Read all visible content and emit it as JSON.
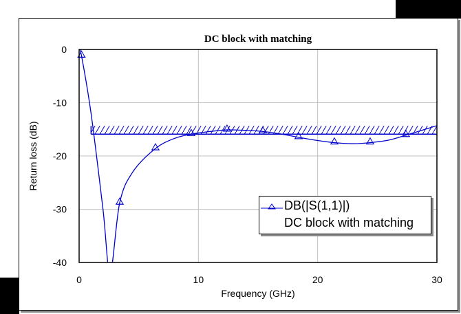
{
  "chart_data": {
    "type": "line",
    "title": "DC block with matching",
    "xlabel": "Frequency (GHz)",
    "ylabel": "Return loss (dB)",
    "xlim": [
      0,
      30
    ],
    "ylim": [
      -40,
      0
    ],
    "xticks": [
      "0",
      "10",
      "20",
      "30"
    ],
    "yticks": [
      "0",
      "-10",
      "-20",
      "-30",
      "-40"
    ],
    "grid": true,
    "legend_position": "lower right",
    "series": [
      {
        "name": "DB(|S(1,1)|)",
        "subtitle": "DC block with matching",
        "color": "#0000cc",
        "marker": "triangle",
        "x": [
          0,
          0.2,
          1.0,
          2.0,
          2.6,
          3.4,
          4.5,
          6.4,
          8.0,
          9.4,
          11.0,
          12.4,
          14.0,
          15.4,
          17.0,
          18.4,
          20.0,
          21.4,
          23.0,
          24.4,
          26.0,
          27.4,
          29.0,
          30.0
        ],
        "y": [
          0,
          -1.2,
          -12,
          -30,
          -42,
          -28.8,
          -23,
          -18.6,
          -16.7,
          -15.9,
          -15.4,
          -15.1,
          -15.2,
          -15.4,
          -15.9,
          -16.5,
          -17.1,
          -17.5,
          -17.7,
          -17.5,
          -17.0,
          -16.1,
          -15.0,
          -14.3
        ]
      }
    ],
    "annotations": [
      {
        "type": "goal-line",
        "label": "hatched specification",
        "x_start": 1.0,
        "x_end": 30.0,
        "y": -15.9,
        "color": "#0000cc"
      }
    ]
  },
  "legend": {
    "line1": "DB(|S(1,1)|)",
    "line2": "DC block with matching"
  }
}
